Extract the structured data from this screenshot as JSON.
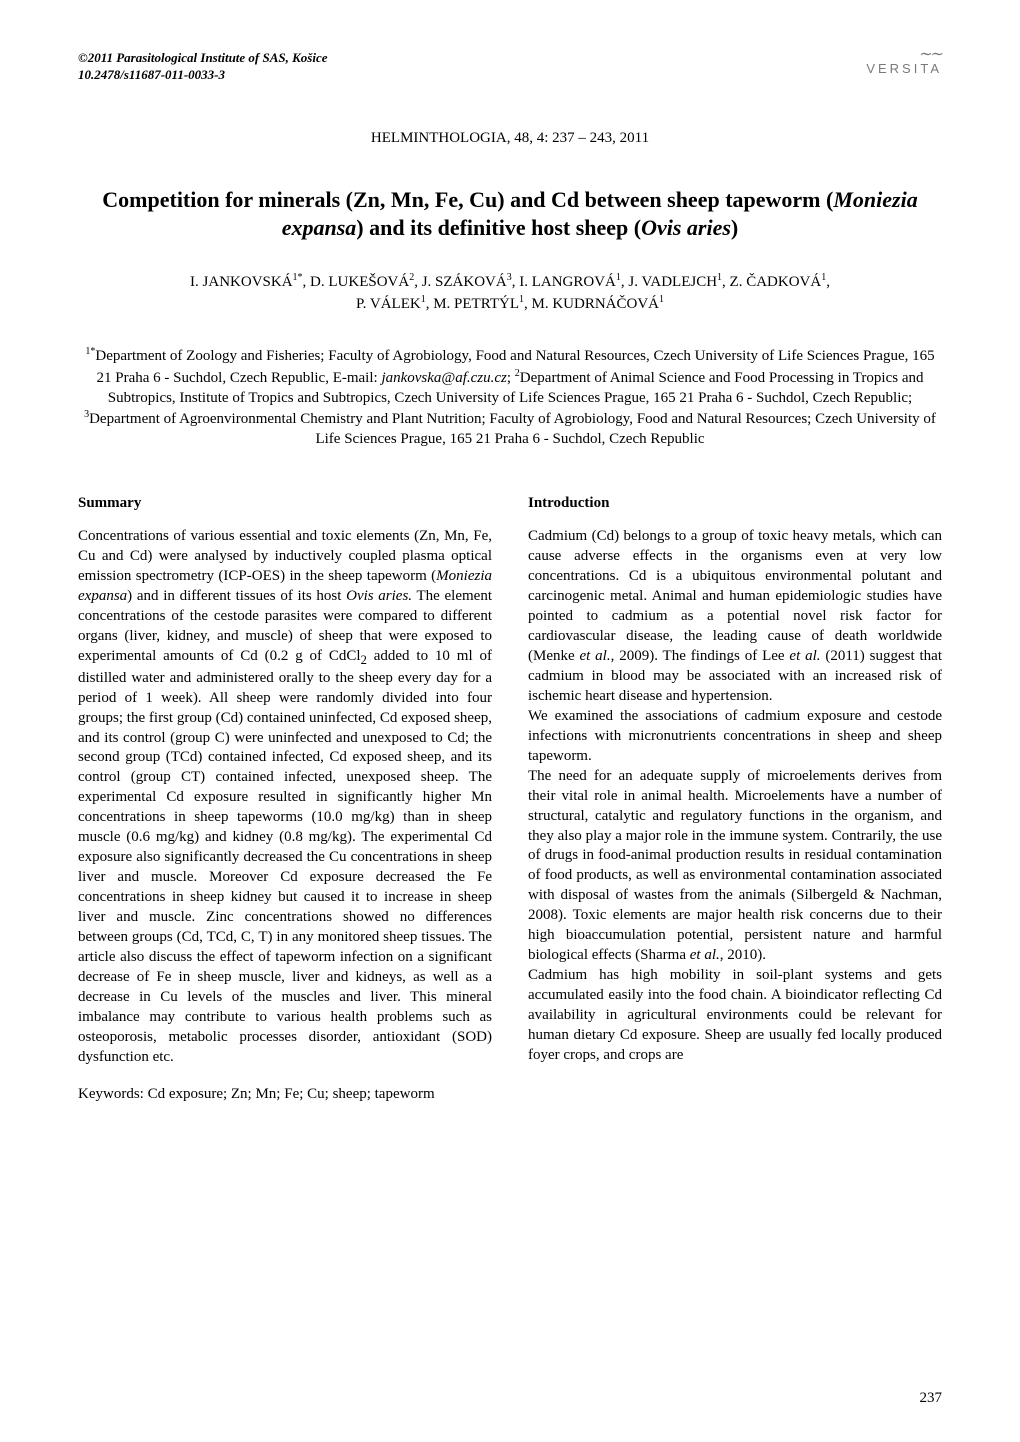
{
  "copyright": {
    "line1": "©2011 Parasitological Institute of SAS, Košice",
    "line2": "10.2478/s11687-011-0033-3"
  },
  "publisher": {
    "tilde": "∼∼",
    "name": "VERSITA"
  },
  "journal_line": "HELMINTHOLOGIA, 48, 4: 237 – 243, 2011",
  "title": {
    "before": "Competition for minerals (Zn, Mn, Fe, Cu) and Cd between sheep tapeworm (",
    "latin1": "Moniezia expansa",
    "mid": ") and its definitive host sheep (",
    "latin2": "Ovis aries",
    "after": ")"
  },
  "authors": {
    "list": [
      {
        "name": "I. JANKOVSKÁ",
        "sup": "1*"
      },
      {
        "name": "D. LUKEŠOVÁ",
        "sup": "2"
      },
      {
        "name": "J. SZÁKOVÁ",
        "sup": "3"
      },
      {
        "name": "I. LANGROVÁ",
        "sup": "1"
      },
      {
        "name": "J. VADLEJCH",
        "sup": "1"
      },
      {
        "name": "Z. ČADKOVÁ",
        "sup": "1"
      },
      {
        "name": "P. VÁLEK",
        "sup": "1"
      },
      {
        "name": "M. PETRTÝL",
        "sup": "1"
      },
      {
        "name": "M. KUDRNÁČOVÁ",
        "sup": "1"
      }
    ]
  },
  "affiliations": {
    "pieces": [
      {
        "sup": "1*",
        "text": "Department of Zoology and Fisheries; Faculty of Agrobiology, Food and Natural Resources, Czech University of Life Sciences Prague, 165 21 Praha 6 - Suchdol, Czech Republic, E-mail: "
      },
      {
        "email": "jankovska@af.czu.cz"
      },
      {
        "text": "; "
      },
      {
        "sup": "2",
        "text": "Department of Animal Science and Food Processing in Tropics and Subtropics, Institute of Tropics and Subtropics, Czech University of Life Sciences Prague, 165 21 Praha 6 - Suchdol, Czech Republic; "
      },
      {
        "sup": "3",
        "text": "Department of Agroenvironmental Chemistry and Plant Nutrition; Faculty of Agrobiology, Food and Natural Resources; Czech University of Life Sciences Prague, 165 21 Praha 6 - Suchdol, Czech Republic"
      }
    ]
  },
  "left": {
    "summary_head": "Summary",
    "summary_frag": [
      {
        "t": "Concentrations of various essential and toxic elements (Zn, Mn, Fe, Cu and Cd) were analysed by inductively coupled plasma optical emission spectrometry (ICP-OES) in the sheep tapeworm ("
      },
      {
        "it": "Moniezia expansa"
      },
      {
        "t": ") and in different tissues of its host "
      },
      {
        "it": "Ovis aries."
      },
      {
        "t": " The element concentrations of the cestode parasites were compared to different organs (liver, kidney, and muscle) of sheep that were exposed to experimental amounts of Cd (0.2 g of CdCl"
      },
      {
        "sub": "2"
      },
      {
        "t": " added to 10 ml of distilled water and administered orally to the sheep every day for a period of 1 week). All sheep were randomly divided into four groups; the first group (Cd) contained uninfected, Cd exposed sheep, and its control (group C) were uninfected and unexposed to Cd; the second group (TCd) contained infected, Cd exposed sheep, and its control (group CT) contained infected, unexposed sheep. The experimental Cd exposure resulted in significantly higher Mn concentrations in sheep tapeworms (10.0 mg/kg) than in sheep muscle (0.6 mg/kg) and kidney (0.8 mg/kg). The experimental Cd exposure also significantly decreased the Cu concentrations in sheep liver and muscle. Moreover Cd exposure decreased the Fe concentrations in sheep kidney but caused it to increase in sheep liver and muscle. Zinc concentrations showed no differences between groups (Cd, TCd, C, T) in any monitored sheep tissues. The article also discuss the effect of tapeworm infection on a significant decrease of Fe in sheep muscle, liver and kidneys, as well as a decrease in Cu levels of the muscles and liver. This mineral imbalance may contribute to various health problems such as osteoporosis, metabolic processes disorder, antioxidant (SOD) dysfunction etc."
      }
    ],
    "keywords": "Keywords: Cd exposure; Zn; Mn; Fe; Cu; sheep; tapeworm"
  },
  "right": {
    "intro_head": "Introduction",
    "p1": [
      {
        "t": "Cadmium (Cd) belongs to a group of toxic heavy metals, which can cause adverse effects in the organisms even at very low concentrations. Cd is a ubiquitous environmental polutant and carcinogenic metal. Animal and human epidemiologic studies have pointed to cadmium as a potential novel risk factor for cardiovascular disease, the leading cause of death worldwide (Menke "
      },
      {
        "it": "et al."
      },
      {
        "t": ", 2009). The findings of Lee "
      },
      {
        "it": "et al."
      },
      {
        "t": " (2011) suggest that cadmium in blood may be associated with an increased risk of ischemic heart disease and hypertension."
      }
    ],
    "p2": "We examined the associations of cadmium exposure and cestode infections with micronutrients concentrations in sheep and sheep tapeworm.",
    "p3": [
      {
        "t": "The need for an adequate supply of microelements derives from their vital role in animal health. Microelements have a number of structural, catalytic and regulatory functions in the organism, and they also play a major role in the immune system. Contrarily, the use of drugs in food-animal production results in residual contamination of food products, as well as environmental contamination associated with disposal of wastes from the animals (Silbergeld & Nachman, 2008). Toxic elements are major health risk concerns due to their high bioaccumulation potential, persistent nature and harmful biological effects (Sharma "
      },
      {
        "it": "et al."
      },
      {
        "t": ", 2010)."
      }
    ],
    "p4": "Cadmium has high mobility in soil-plant systems and gets accumulated easily into the food chain. A bioindicator reflecting Cd availability in agricultural environments could be relevant for human dietary Cd exposure. Sheep are usually fed locally produced foyer crops, and crops are"
  },
  "page_number": "237"
}
